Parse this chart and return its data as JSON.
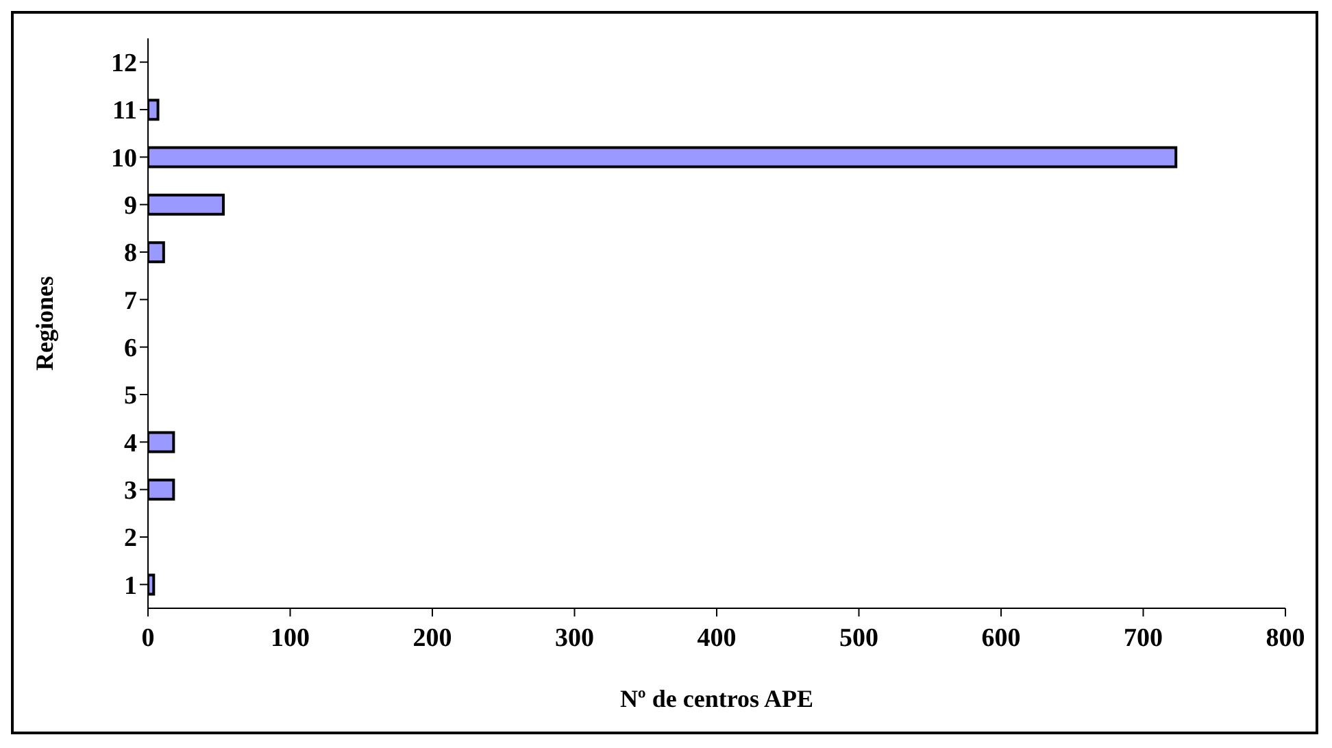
{
  "chart_data": {
    "type": "bar",
    "orientation": "horizontal",
    "xlabel": "Nº de centros APE",
    "ylabel": "Regiones",
    "categories": [
      "12",
      "11",
      "10",
      "9",
      "8",
      "7",
      "6",
      "5",
      "4",
      "3",
      "2",
      "1"
    ],
    "values": [
      null,
      7,
      723,
      53,
      11,
      null,
      null,
      null,
      18,
      18,
      null,
      4
    ],
    "color": "#9999ff",
    "xlim": [
      0,
      800
    ],
    "xticks": [
      0,
      100,
      200,
      300,
      400,
      500,
      600,
      700,
      800
    ],
    "grid": false,
    "legend": false
  }
}
